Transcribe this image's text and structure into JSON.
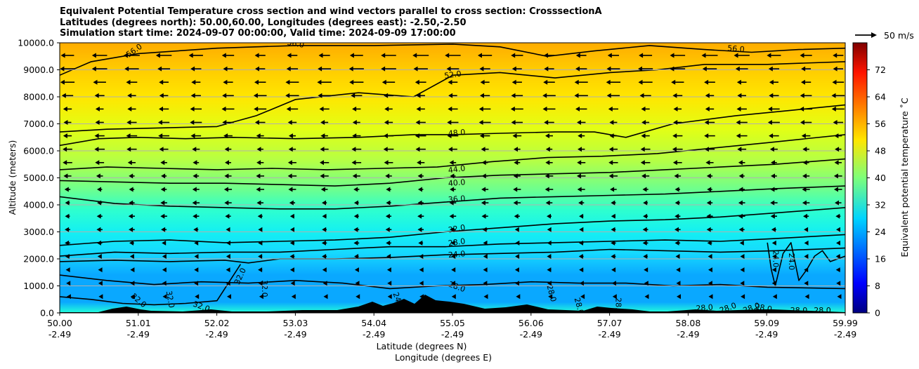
{
  "title_lines": [
    "Equivalent Potential Temperature cross section and wind vectors parallel to cross section: CrosssectionA",
    "Latitudes (degrees north): 50.00,60.00, Longitudes (degrees east): -2.50,-2.50",
    "Simulation start time: 2024-09-07 00:00:00, Valid time: 2024-09-09 17:00:00"
  ],
  "chart_data": {
    "type": "heatmap",
    "subtype": "filled-contour cross section with line contours and wind quiver",
    "ylabel": "Altitude (meters)",
    "xlabel_lines": [
      "Latitude (degrees N)",
      "Longitude (degrees E)"
    ],
    "ylim": [
      0,
      10000
    ],
    "yticks": [
      "0.0",
      "1000.0",
      "2000.0",
      "3000.0",
      "4000.0",
      "5000.0",
      "6000.0",
      "7000.0",
      "8000.0",
      "9000.0",
      "10000.0"
    ],
    "xtick_latitudes": [
      "50.00",
      "51.01",
      "52.02",
      "53.03",
      "54.04",
      "55.05",
      "56.06",
      "57.07",
      "58.08",
      "59.09",
      "59.99"
    ],
    "xtick_longitudes": [
      "-2.49",
      "-2.49",
      "-2.49",
      "-2.49",
      "-2.49",
      "-2.49",
      "-2.49",
      "-2.49",
      "-2.49",
      "-2.49",
      "-2.49"
    ],
    "grid": "horizontal",
    "colorbar": {
      "label": "Equivalent potential temperature ˚C",
      "range": [
        0,
        80
      ],
      "ticks": [
        "0",
        "8",
        "16",
        "24",
        "32",
        "40",
        "48",
        "56",
        "64",
        "72"
      ],
      "colormap": "jet"
    },
    "quiver_key": "50 m/s",
    "contour_labels": [
      "56.0",
      "56.0",
      "56.0",
      "52.0",
      "48.0",
      "44.0",
      "40.0",
      "36.0",
      "32.0",
      "28.0",
      "24.0",
      "28.0",
      "24.0",
      "24.0",
      "32.0",
      "32.0",
      "32.0",
      "32.0",
      "32.0",
      "24.0",
      "28.0",
      "28.0",
      "28.0",
      "28.0",
      "28.0",
      "28.0",
      "28.0",
      "28.0",
      "28.0"
    ],
    "contours": [
      {
        "level": 56,
        "x": [
          50.0,
          50.4,
          51.0,
          52.0,
          53.0,
          54.0,
          55.0,
          55.6,
          56.2,
          56.8,
          57.5,
          58.2,
          58.8,
          59.4,
          59.99
        ],
        "y": [
          8800,
          9300,
          9600,
          9800,
          9900,
          9900,
          9950,
          9850,
          9500,
          9700,
          9900,
          9750,
          9650,
          9750,
          9800
        ]
      },
      {
        "level": 52,
        "x": [
          50.0,
          50.6,
          51.3,
          52.0,
          52.5,
          53.0,
          53.8,
          54.5,
          55.0,
          55.6,
          56.3,
          57.0,
          57.6,
          58.2,
          59.0,
          59.99
        ],
        "y": [
          6700,
          6800,
          6850,
          6900,
          7300,
          7900,
          8150,
          8000,
          8800,
          8900,
          8700,
          8900,
          9000,
          9200,
          9200,
          9300
        ]
      },
      {
        "level": 48,
        "x": [
          50.0,
          50.5,
          51.0,
          51.6,
          52.2,
          53.0,
          53.8,
          54.5,
          55.0,
          55.6,
          56.3,
          56.8,
          57.2,
          57.8,
          58.6,
          59.3,
          59.99
        ],
        "y": [
          6200,
          6450,
          6500,
          6450,
          6500,
          6450,
          6500,
          6600,
          6600,
          6650,
          6700,
          6700,
          6500,
          7000,
          7300,
          7500,
          7700
        ]
      },
      {
        "level": 44,
        "x": [
          50.0,
          50.6,
          51.3,
          52.0,
          52.7,
          53.4,
          54.1,
          54.8,
          55.5,
          56.2,
          56.9,
          57.6,
          58.3,
          59.0,
          59.99
        ],
        "y": [
          5300,
          5400,
          5350,
          5300,
          5350,
          5300,
          5350,
          5400,
          5600,
          5750,
          5800,
          5900,
          6100,
          6300,
          6600
        ]
      },
      {
        "level": 40,
        "x": [
          50.0,
          50.7,
          51.4,
          52.1,
          52.8,
          53.5,
          54.2,
          54.9,
          55.6,
          56.3,
          57.0,
          57.7,
          58.4,
          59.1,
          59.99
        ],
        "y": [
          4900,
          4850,
          4800,
          4800,
          4750,
          4700,
          4800,
          5000,
          5100,
          5150,
          5200,
          5300,
          5400,
          5500,
          5700
        ]
      },
      {
        "level": 36,
        "x": [
          50.0,
          50.7,
          51.4,
          52.1,
          52.8,
          53.5,
          54.2,
          54.9,
          55.6,
          56.3,
          57.0,
          57.7,
          58.4,
          59.1,
          59.99
        ],
        "y": [
          4300,
          4050,
          3950,
          3900,
          3850,
          3850,
          3950,
          4100,
          4250,
          4300,
          4350,
          4400,
          4500,
          4600,
          4700
        ]
      },
      {
        "level": 32,
        "x": [
          50.0,
          50.7,
          51.4,
          52.1,
          52.8,
          53.5,
          54.2,
          54.9,
          55.6,
          56.3,
          57.0,
          57.7,
          58.4,
          59.1,
          59.99
        ],
        "y": [
          2500,
          2650,
          2700,
          2600,
          2650,
          2700,
          2800,
          3000,
          3150,
          3300,
          3400,
          3450,
          3550,
          3700,
          3900
        ]
      },
      {
        "level": 28,
        "x": [
          50.0,
          50.7,
          51.4,
          52.1,
          52.8,
          53.5,
          54.2,
          54.9,
          55.6,
          56.3,
          57.0,
          57.7,
          58.4,
          59.1,
          59.99
        ],
        "y": [
          2100,
          2250,
          2200,
          2250,
          2250,
          2350,
          2450,
          2450,
          2550,
          2600,
          2650,
          2700,
          2650,
          2750,
          2900
        ]
      },
      {
        "level": 24,
        "x": [
          50.0,
          50.7,
          51.4,
          52.1,
          52.4,
          52.8,
          53.5,
          54.2,
          54.9,
          55.6,
          56.3,
          57.0,
          57.7,
          58.4,
          59.1,
          59.99
        ],
        "y": [
          1900,
          1950,
          1900,
          1950,
          1850,
          2000,
          2000,
          2050,
          2150,
          2200,
          2250,
          2350,
          2300,
          2250,
          2300,
          2400
        ]
      },
      {
        "level": 28,
        "x": [
          50.0,
          50.6,
          51.2,
          51.8,
          52.4,
          53.0,
          53.6,
          54.2,
          54.8,
          55.4,
          56.0,
          56.6,
          57.2,
          57.8,
          58.4,
          59.0,
          59.99
        ],
        "y": [
          1400,
          1200,
          1050,
          1150,
          1100,
          1200,
          1100,
          900,
          1000,
          1050,
          1150,
          1100,
          1100,
          1000,
          1050,
          950,
          900
        ]
      },
      {
        "level": 32,
        "x": [
          50.0,
          50.4,
          50.8,
          51.2,
          51.6,
          52.0,
          52.3
        ],
        "y": [
          600,
          500,
          350,
          300,
          350,
          450,
          1800
        ]
      },
      {
        "level": 24,
        "x": [
          59.0,
          59.05,
          59.1,
          59.2,
          59.3,
          59.4,
          59.5,
          59.6,
          59.7,
          59.8,
          59.99
        ],
        "y": [
          2600,
          1600,
          1000,
          2200,
          2600,
          1200,
          1600,
          2100,
          2300,
          1900,
          2100
        ]
      }
    ]
  }
}
